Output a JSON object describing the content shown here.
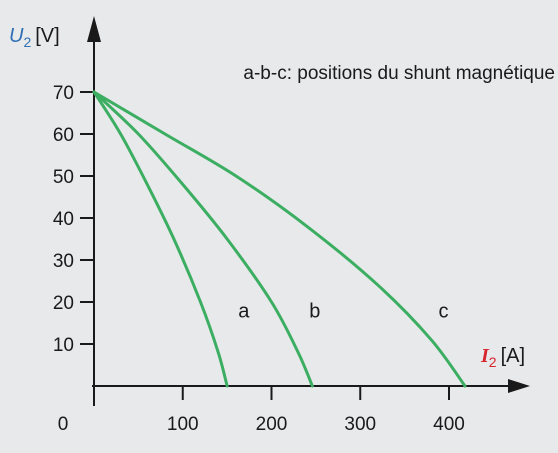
{
  "chart_data": {
    "type": "line",
    "ylabel_symbol": "U",
    "ylabel_subscript": "2",
    "ylabel_unit": "[V]",
    "xlabel_symbol": "I",
    "xlabel_subscript": "2",
    "xlabel_unit": "[A]",
    "annotation": "a-b-c: positions du shunt magnétique",
    "origin_label": "0",
    "x_ticks": [
      100,
      200,
      300,
      400
    ],
    "y_ticks": [
      10,
      20,
      30,
      40,
      50,
      60,
      70
    ],
    "xlim": [
      0,
      480
    ],
    "ylim": [
      0,
      78
    ],
    "grid": false,
    "series": [
      {
        "name": "a",
        "points": [
          [
            0,
            70
          ],
          [
            30,
            60
          ],
          [
            60,
            48
          ],
          [
            90,
            35
          ],
          [
            120,
            20
          ],
          [
            140,
            8
          ],
          [
            150,
            0
          ]
        ]
      },
      {
        "name": "b",
        "points": [
          [
            0,
            70
          ],
          [
            50,
            60
          ],
          [
            100,
            48
          ],
          [
            150,
            35
          ],
          [
            200,
            20
          ],
          [
            230,
            8
          ],
          [
            246,
            0
          ]
        ]
      },
      {
        "name": "c",
        "points": [
          [
            0,
            70
          ],
          [
            80,
            60
          ],
          [
            160,
            50
          ],
          [
            240,
            38
          ],
          [
            320,
            24
          ],
          [
            380,
            11
          ],
          [
            418,
            0
          ]
        ]
      }
    ],
    "series_label_values": [
      [
        135,
        18
      ],
      [
        215,
        18
      ],
      [
        360,
        18
      ]
    ],
    "colors": {
      "curve": "#3cae62",
      "axis": "#1a1a1a",
      "u_label": "#2f6fb5",
      "i_label": "#d7262d",
      "background": "#e8e9eb"
    }
  }
}
